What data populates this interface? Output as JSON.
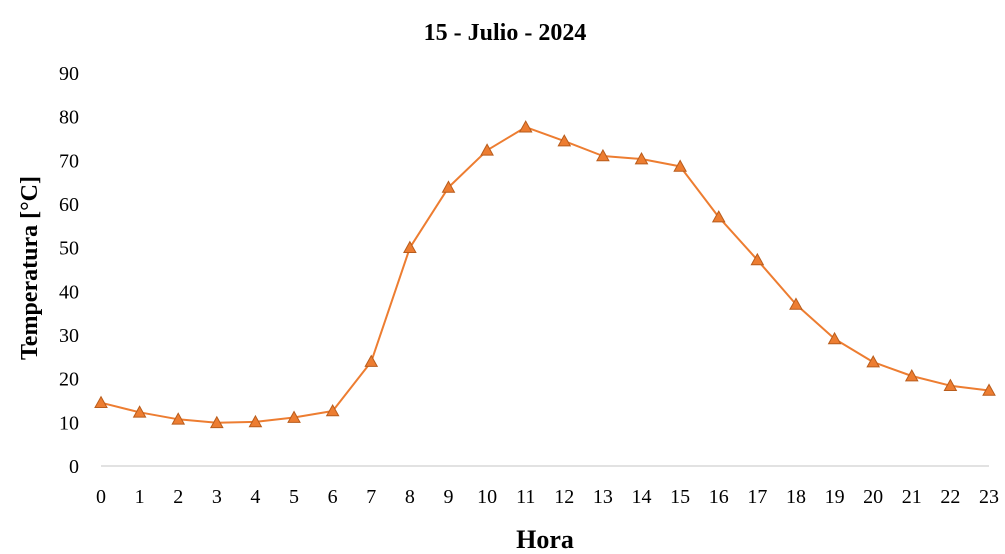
{
  "chart_data": {
    "type": "line",
    "title": "15 - Julio - 2024",
    "xlabel": "Hora",
    "ylabel": "Temperatura [°C]",
    "categories": [
      "0",
      "1",
      "2",
      "3",
      "4",
      "5",
      "6",
      "7",
      "8",
      "9",
      "10",
      "11",
      "12",
      "13",
      "14",
      "15",
      "16",
      "17",
      "18",
      "19",
      "20",
      "21",
      "22",
      "23"
    ],
    "series": [
      {
        "values": [
          14.5,
          12.3,
          10.7,
          9.9,
          10.1,
          11.1,
          12.6,
          23.9,
          50.0,
          63.8,
          72.3,
          77.6,
          74.4,
          71.0,
          70.3,
          68.6,
          57.0,
          47.2,
          37.0,
          29.1,
          23.8,
          20.6,
          18.4,
          17.3
        ]
      }
    ],
    "ylim": [
      0,
      90
    ],
    "yticks": [
      0,
      10,
      20,
      30,
      40,
      50,
      60,
      70,
      80,
      90
    ],
    "grid": false,
    "legend": "none",
    "colors": {
      "line": "#ED7D31",
      "marker_fill": "#ED7D31",
      "marker_stroke": "#B85C1C",
      "axis": "#D9D9D9"
    }
  }
}
